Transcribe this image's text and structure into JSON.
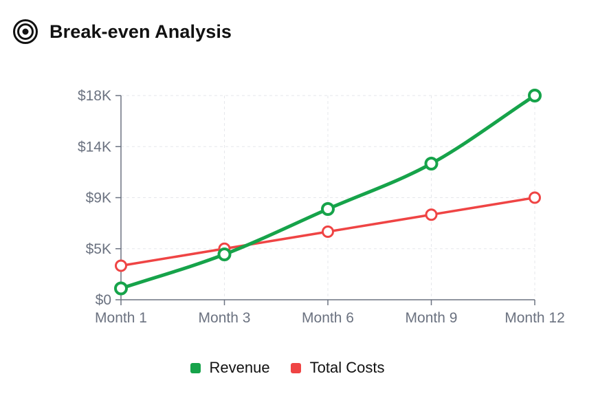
{
  "header": {
    "title": "Break-even Analysis",
    "icon": "target-icon"
  },
  "chart_data": {
    "type": "line",
    "title": "Break-even Analysis",
    "xlabel": "",
    "ylabel": "",
    "categories": [
      "Month 1",
      "Month 3",
      "Month 6",
      "Month 9",
      "Month 12"
    ],
    "ylim": [
      0,
      18000
    ],
    "y_ticks": [
      0,
      4500,
      9000,
      13500,
      18000
    ],
    "y_tick_labels": [
      "$0",
      "$5K",
      "$9K",
      "$14K",
      "$18K"
    ],
    "grid": true,
    "legend_position": "bottom",
    "series": [
      {
        "name": "Revenue",
        "color": "#16a34a",
        "values": [
          1000,
          4000,
          8000,
          12000,
          18000
        ]
      },
      {
        "name": "Total Costs",
        "color": "#ef4444",
        "values": [
          3000,
          4500,
          6000,
          7500,
          9000
        ]
      }
    ]
  }
}
